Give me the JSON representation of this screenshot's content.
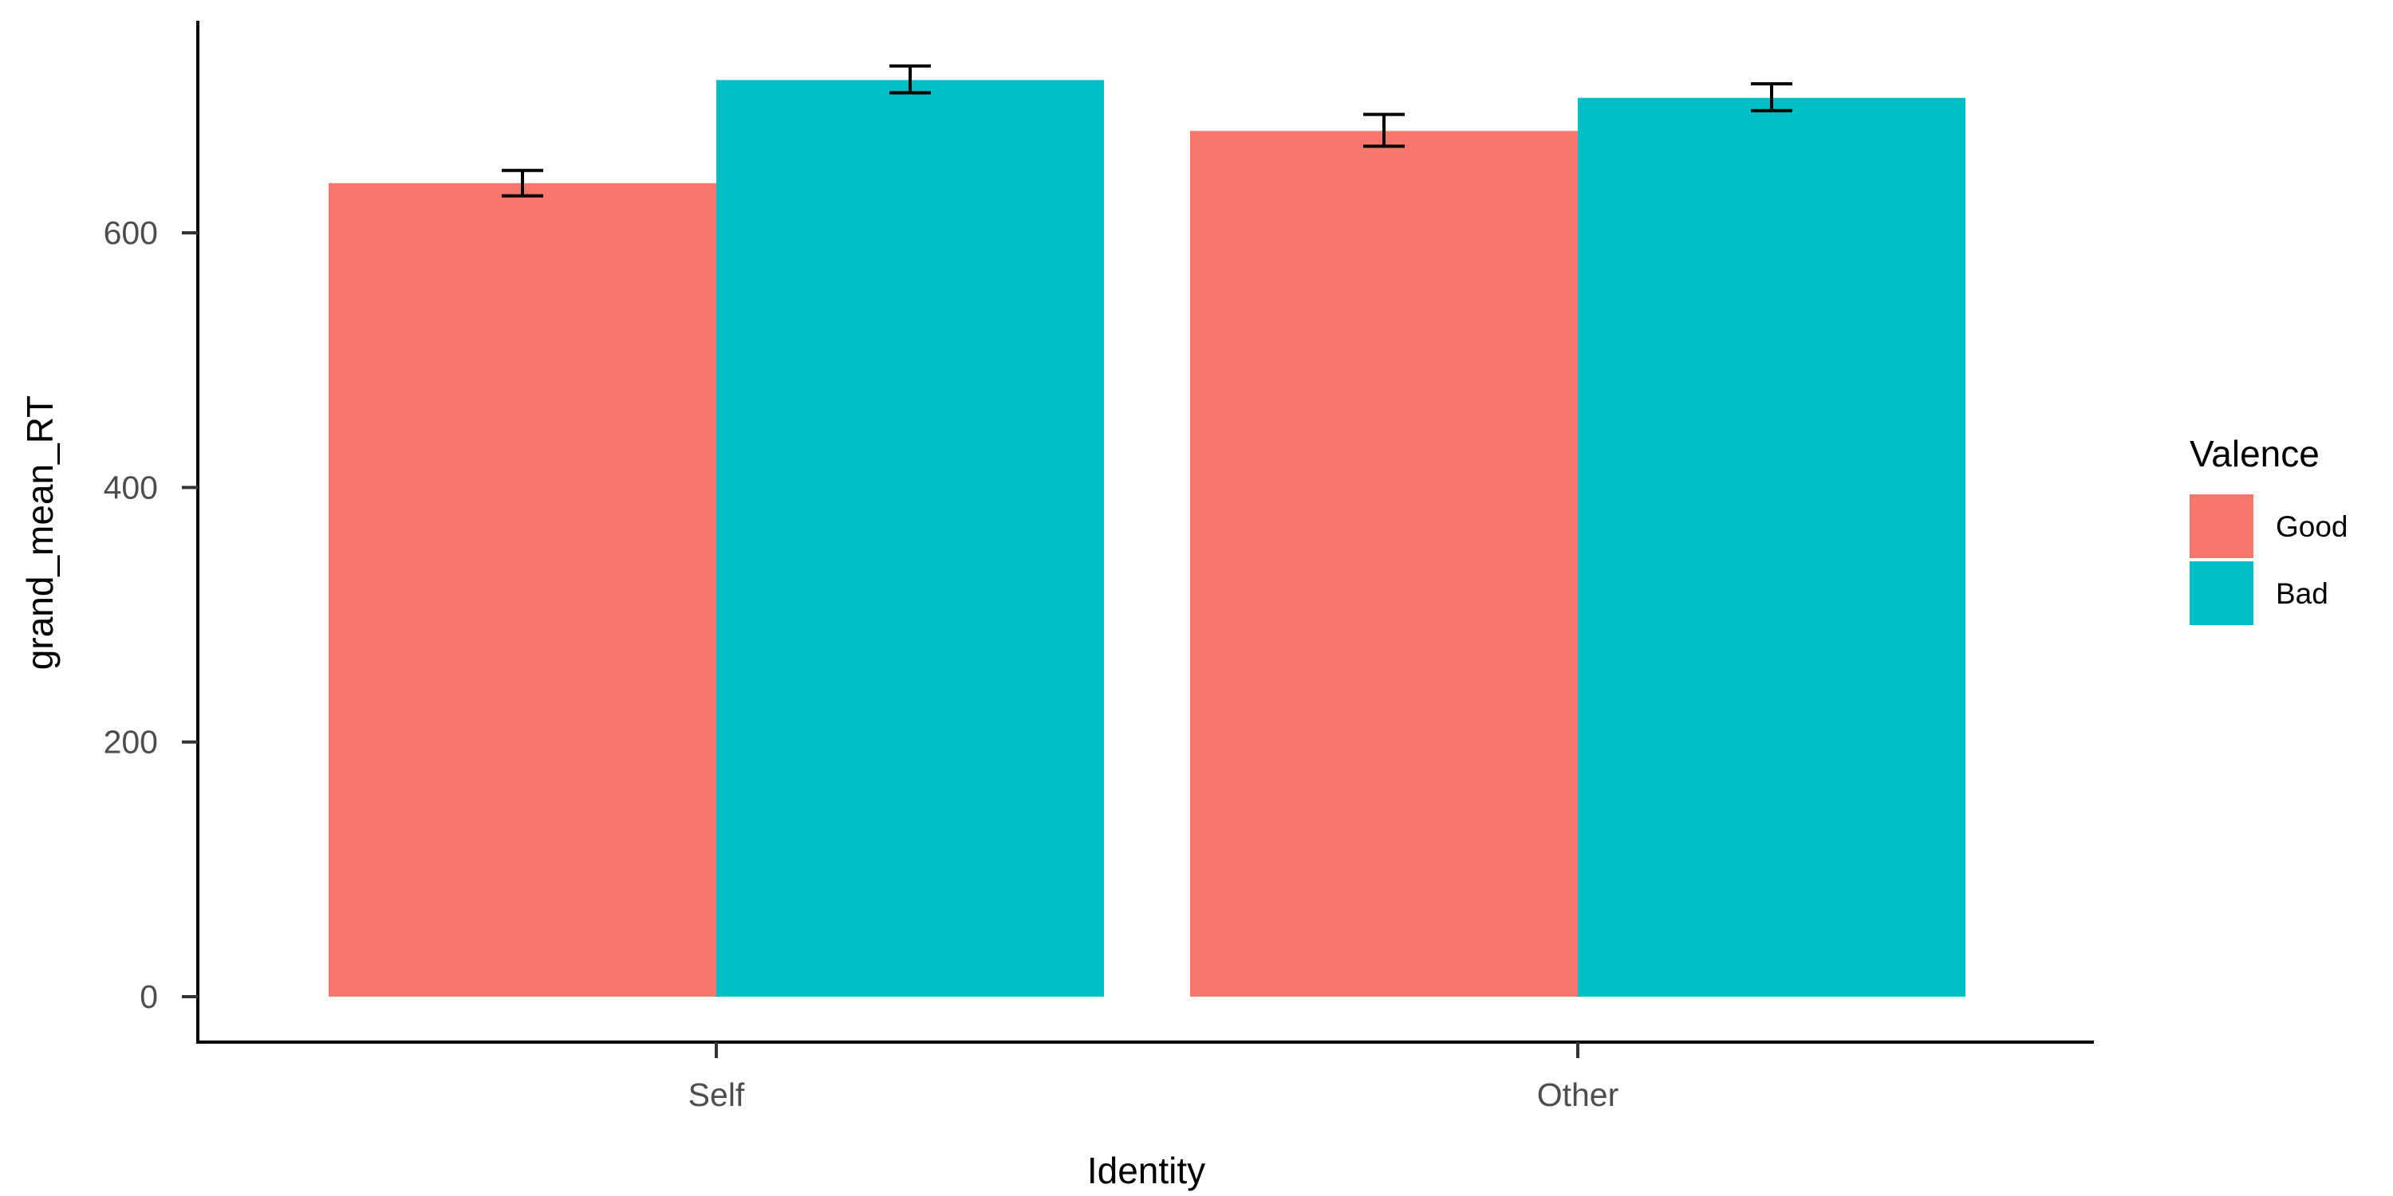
{
  "chart_data": {
    "type": "bar",
    "categories": [
      "Self",
      "Other"
    ],
    "series": [
      {
        "name": "Good",
        "color": "#F8766D",
        "values": [
          639,
          680
        ],
        "error_low": [
          629,
          668
        ],
        "error_high": [
          649,
          693
        ]
      },
      {
        "name": "Bad",
        "color": "#00BFC4",
        "values": [
          720,
          706
        ],
        "error_low": [
          710,
          696
        ],
        "error_high": [
          731,
          717
        ]
      }
    ],
    "xlabel": "Identity",
    "ylabel": "grand_mean_RT",
    "ylim": [
      0,
      760
    ],
    "yticks": [
      0,
      200,
      400,
      600
    ],
    "legend": {
      "title": "Valence",
      "position": "right"
    },
    "grid": false
  }
}
